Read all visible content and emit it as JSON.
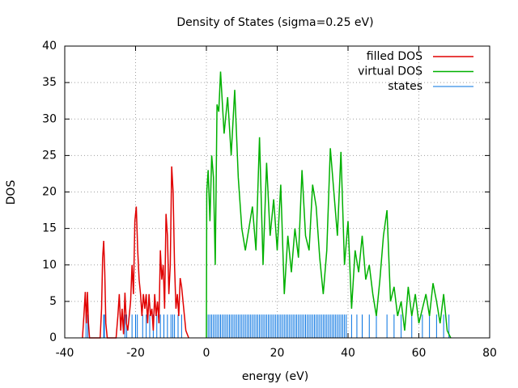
{
  "chart_data": {
    "type": "line",
    "title": "Density of States (sigma=0.25 eV)",
    "xlabel": "energy (eV)",
    "ylabel": "DOS",
    "xlim": [
      -40,
      80
    ],
    "ylim": [
      0,
      40
    ],
    "xticks": [
      -40,
      -20,
      0,
      20,
      40,
      60,
      80
    ],
    "yticks": [
      0,
      5,
      10,
      15,
      20,
      25,
      30,
      35,
      40
    ],
    "grid": true,
    "legend": "top-right",
    "series": [
      {
        "name": "filled DOS",
        "color": "#e00000",
        "style": "lines",
        "x": [
          -35,
          -34.6,
          -34.2,
          -33.9,
          -33.6,
          -33.3,
          -33,
          -30,
          -29.6,
          -29.3,
          -29,
          -28.7,
          -28.4,
          -28,
          -25.5,
          -25,
          -24.6,
          -24.2,
          -23.8,
          -23.4,
          -23,
          -22.6,
          -22.2,
          -21.8,
          -21.4,
          -21,
          -20.6,
          -20.2,
          -19.8,
          -19.4,
          -19,
          -18.6,
          -18.2,
          -17.8,
          -17.4,
          -17,
          -16.6,
          -16.2,
          -15.8,
          -15.4,
          -15,
          -14.6,
          -14.2,
          -13.8,
          -13.4,
          -13,
          -12.6,
          -12.2,
          -11.8,
          -11.4,
          -11,
          -10.6,
          -10.2,
          -9.8,
          -9.4,
          -9,
          -8.6,
          -8.2,
          -7.8,
          -7.4,
          -7,
          -6.6,
          -6.2,
          -5.8,
          -5.4,
          -5
        ],
        "values": [
          0,
          3,
          6.3,
          2,
          6.3,
          2,
          0,
          0,
          4,
          11,
          13.3,
          9,
          2,
          0,
          0,
          3,
          6,
          1,
          4,
          0.5,
          6.2,
          2,
          1,
          3,
          5,
          10,
          6,
          16,
          18,
          12,
          8,
          6,
          3,
          6,
          4,
          6,
          2,
          6,
          3,
          4,
          1,
          6,
          3,
          5,
          2,
          12,
          8,
          10,
          4,
          17,
          14,
          6,
          10,
          23.5,
          20,
          10,
          4,
          6,
          3,
          8.2,
          7,
          5,
          3,
          1,
          0.5,
          0
        ]
      },
      {
        "name": "virtual DOS",
        "color": "#00b000",
        "style": "lines",
        "x": [
          0,
          0.1,
          0.5,
          1,
          1.5,
          2,
          2.5,
          3,
          3.5,
          4,
          5,
          6,
          7,
          8,
          9,
          10,
          11,
          12,
          13,
          14,
          15,
          16,
          17,
          18,
          19,
          20,
          21,
          22,
          23,
          24,
          25,
          26,
          27,
          28,
          29,
          30,
          31,
          32,
          33,
          34,
          35,
          36,
          37,
          38,
          39,
          40,
          41,
          42,
          43,
          44,
          45,
          46,
          47,
          48,
          49,
          50,
          51,
          52,
          53,
          54,
          55,
          56,
          57,
          58,
          59,
          60,
          61,
          62,
          63,
          64,
          65,
          66,
          67,
          68,
          69
        ],
        "values": [
          0,
          20,
          23,
          16,
          25,
          22,
          10,
          32,
          31,
          36.5,
          28,
          33,
          25,
          34,
          22,
          15,
          12,
          15,
          18,
          12,
          27.5,
          10,
          24,
          14,
          19,
          12,
          21,
          6,
          14,
          9,
          15,
          11,
          23,
          14,
          12,
          21,
          18,
          11,
          6,
          12,
          26,
          20,
          14,
          25.5,
          10,
          16,
          4,
          12,
          9,
          14,
          8,
          10,
          6,
          3,
          8,
          14,
          17.5,
          5,
          7,
          3,
          5,
          1,
          7,
          3,
          6,
          2,
          4,
          6,
          3,
          7.5,
          5,
          2,
          6,
          1,
          0
        ]
      },
      {
        "name": "states",
        "color": "#0070e0",
        "style": "impulses",
        "x": [
          -34,
          -33.5,
          -29,
          -28.8,
          -23,
          -22.5,
          -21,
          -20,
          -19.5,
          -18,
          -17,
          -16,
          -15,
          -14,
          -13,
          -12,
          -11,
          -10,
          -9.5,
          -9,
          -8,
          -7,
          0,
          0.5,
          1,
          1.5,
          2,
          2.5,
          3,
          3.5,
          4,
          4.5,
          5,
          5.5,
          6,
          6.5,
          7,
          7.5,
          8,
          8.5,
          9,
          9.5,
          10,
          10.5,
          11,
          11.5,
          12,
          12.5,
          13,
          13.5,
          14,
          14.5,
          15,
          15.5,
          16,
          16.5,
          17,
          17.5,
          18,
          18.5,
          19,
          19.5,
          20,
          20.5,
          21,
          21.5,
          22,
          22.5,
          23,
          23.5,
          24,
          24.5,
          25,
          25.5,
          26,
          26.5,
          27,
          27.5,
          28,
          28.5,
          29,
          29.5,
          30,
          30.5,
          31,
          31.5,
          32,
          32.5,
          33,
          33.5,
          34,
          34.5,
          35,
          35.5,
          36,
          36.5,
          37,
          37.5,
          38,
          38.5,
          39,
          39.5,
          41,
          42.5,
          44,
          46,
          48,
          51,
          53,
          55,
          58,
          61,
          63,
          65,
          67,
          68.5
        ],
        "values": [
          3.2,
          3.2,
          3.2,
          3.2,
          3.2,
          3.2,
          3.2,
          3.2,
          3.2,
          3.2,
          3.2,
          3.2,
          3.2,
          3.2,
          3.2,
          3.2,
          3.2,
          3.2,
          3.2,
          3.2,
          3.2,
          3.2,
          3.2,
          3.2,
          3.2,
          3.2,
          3.2,
          3.2,
          3.2,
          3.2,
          3.2,
          3.2,
          3.2,
          3.2,
          3.2,
          3.2,
          3.2,
          3.2,
          3.2,
          3.2,
          3.2,
          3.2,
          3.2,
          3.2,
          3.2,
          3.2,
          3.2,
          3.2,
          3.2,
          3.2,
          3.2,
          3.2,
          3.2,
          3.2,
          3.2,
          3.2,
          3.2,
          3.2,
          3.2,
          3.2,
          3.2,
          3.2,
          3.2,
          3.2,
          3.2,
          3.2,
          3.2,
          3.2,
          3.2,
          3.2,
          3.2,
          3.2,
          3.2,
          3.2,
          3.2,
          3.2,
          3.2,
          3.2,
          3.2,
          3.2,
          3.2,
          3.2,
          3.2,
          3.2,
          3.2,
          3.2,
          3.2,
          3.2,
          3.2,
          3.2,
          3.2,
          3.2,
          3.2,
          3.2,
          3.2,
          3.2,
          3.2,
          3.2,
          3.2,
          3.2,
          3.2,
          3.2,
          3.2,
          3.2,
          3.2,
          3.2,
          3.2,
          3.2,
          3.2,
          3.2,
          3.2,
          3.2,
          3.2,
          3.2,
          3.2,
          3.2
        ]
      }
    ]
  }
}
